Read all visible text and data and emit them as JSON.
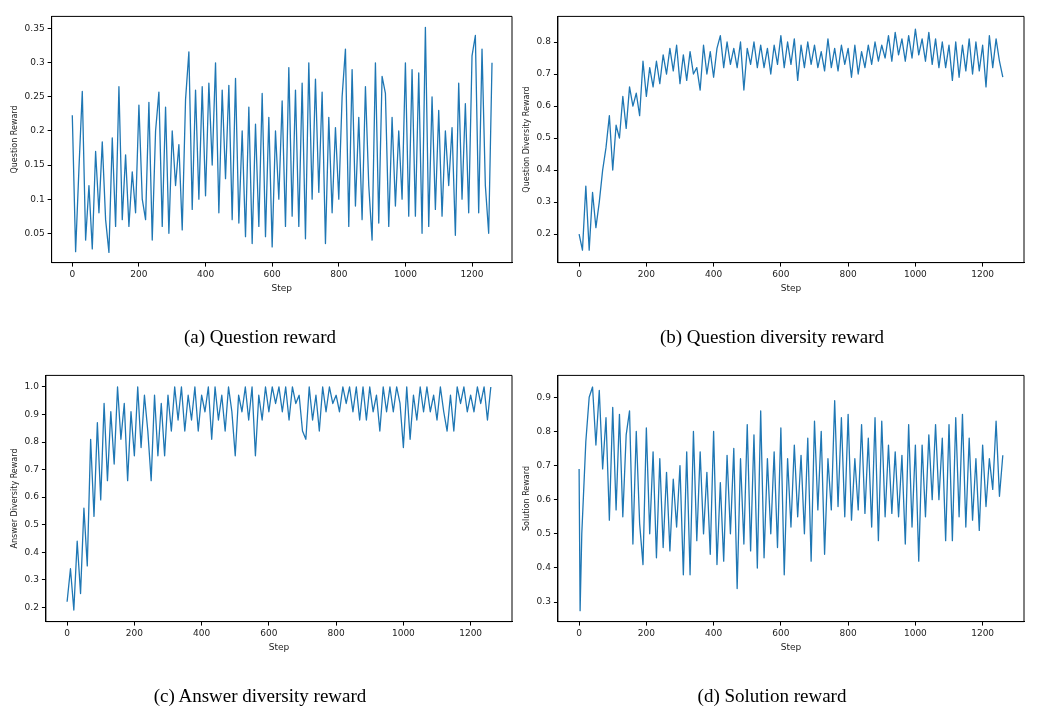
{
  "chart_data": [
    {
      "type": "line",
      "title": "(a) Question reward",
      "xlabel": "Step",
      "ylabel": "Question Reward",
      "xlim": [
        -62,
        1320
      ],
      "xticks": [
        0,
        200,
        400,
        600,
        800,
        1000,
        1200
      ],
      "ylim": [
        0.007,
        0.368
      ],
      "yticks": [
        0.05,
        0.1,
        0.15,
        0.2,
        0.25,
        0.3,
        0.35
      ],
      "grid": false,
      "legend": false,
      "x": [
        0,
        10,
        20,
        30,
        40,
        50,
        60,
        70,
        80,
        90,
        100,
        110,
        120,
        130,
        140,
        150,
        160,
        170,
        180,
        190,
        200,
        210,
        220,
        230,
        240,
        250,
        260,
        270,
        280,
        290,
        300,
        310,
        320,
        330,
        340,
        350,
        360,
        370,
        380,
        390,
        400,
        410,
        420,
        430,
        440,
        450,
        460,
        470,
        480,
        490,
        500,
        510,
        520,
        530,
        540,
        550,
        560,
        570,
        580,
        590,
        600,
        610,
        620,
        630,
        640,
        650,
        660,
        670,
        680,
        690,
        700,
        710,
        720,
        730,
        740,
        750,
        760,
        770,
        780,
        790,
        800,
        810,
        820,
        830,
        840,
        850,
        860,
        870,
        880,
        890,
        900,
        910,
        920,
        930,
        940,
        950,
        960,
        970,
        980,
        990,
        1000,
        1010,
        1020,
        1030,
        1040,
        1050,
        1060,
        1070,
        1080,
        1090,
        1100,
        1110,
        1120,
        1130,
        1140,
        1150,
        1160,
        1170,
        1180,
        1190,
        1200,
        1210,
        1220,
        1230,
        1240,
        1250,
        1260
      ],
      "series": [
        {
          "color": "#1f77b4",
          "values": [
            0.223,
            0.023,
            0.145,
            0.258,
            0.04,
            0.12,
            0.027,
            0.17,
            0.08,
            0.184,
            0.07,
            0.022,
            0.19,
            0.06,
            0.265,
            0.07,
            0.165,
            0.06,
            0.14,
            0.08,
            0.238,
            0.1,
            0.07,
            0.242,
            0.04,
            0.2,
            0.257,
            0.06,
            0.235,
            0.05,
            0.2,
            0.12,
            0.18,
            0.055,
            0.246,
            0.316,
            0.085,
            0.26,
            0.1,
            0.265,
            0.105,
            0.27,
            0.15,
            0.3,
            0.08,
            0.26,
            0.13,
            0.267,
            0.07,
            0.277,
            0.065,
            0.2,
            0.045,
            0.235,
            0.035,
            0.21,
            0.06,
            0.255,
            0.045,
            0.22,
            0.03,
            0.2,
            0.1,
            0.244,
            0.06,
            0.293,
            0.075,
            0.26,
            0.06,
            0.27,
            0.042,
            0.3,
            0.1,
            0.276,
            0.11,
            0.257,
            0.035,
            0.22,
            0.08,
            0.205,
            0.1,
            0.25,
            0.32,
            0.06,
            0.29,
            0.09,
            0.22,
            0.07,
            0.265,
            0.12,
            0.04,
            0.3,
            0.065,
            0.28,
            0.255,
            0.06,
            0.22,
            0.09,
            0.2,
            0.1,
            0.3,
            0.075,
            0.29,
            0.075,
            0.285,
            0.05,
            0.352,
            0.06,
            0.25,
            0.085,
            0.23,
            0.075,
            0.2,
            0.12,
            0.205,
            0.047,
            0.27,
            0.1,
            0.24,
            0.08,
            0.31,
            0.34,
            0.08,
            0.32,
            0.12,
            0.05,
            0.3
          ]
        }
      ]
    },
    {
      "type": "line",
      "title": "(b) Question diversity reward",
      "xlabel": "Step",
      "ylabel": "Question Diversity Reward",
      "xlim": [
        -63,
        1323
      ],
      "xticks": [
        0,
        200,
        400,
        600,
        800,
        1000,
        1200
      ],
      "ylim": [
        0.111,
        0.88
      ],
      "yticks": [
        0.2,
        0.3,
        0.4,
        0.5,
        0.6,
        0.7,
        0.8
      ],
      "grid": false,
      "legend": false,
      "x": [
        0,
        10,
        20,
        30,
        40,
        50,
        60,
        70,
        80,
        90,
        100,
        110,
        120,
        130,
        140,
        150,
        160,
        170,
        180,
        190,
        200,
        210,
        220,
        230,
        240,
        250,
        260,
        270,
        280,
        290,
        300,
        310,
        320,
        330,
        340,
        350,
        360,
        370,
        380,
        390,
        400,
        410,
        420,
        430,
        440,
        450,
        460,
        470,
        480,
        490,
        500,
        510,
        520,
        530,
        540,
        550,
        560,
        570,
        580,
        590,
        600,
        610,
        620,
        630,
        640,
        650,
        660,
        670,
        680,
        690,
        700,
        710,
        720,
        730,
        740,
        750,
        760,
        770,
        780,
        790,
        800,
        810,
        820,
        830,
        840,
        850,
        860,
        870,
        880,
        890,
        900,
        910,
        920,
        930,
        940,
        950,
        960,
        970,
        980,
        990,
        1000,
        1010,
        1020,
        1030,
        1040,
        1050,
        1060,
        1070,
        1080,
        1090,
        1100,
        1110,
        1120,
        1130,
        1140,
        1150,
        1160,
        1170,
        1180,
        1190,
        1200,
        1210,
        1220,
        1230,
        1240,
        1250,
        1260
      ],
      "series": [
        {
          "color": "#1f77b4",
          "values": [
            0.2,
            0.15,
            0.35,
            0.15,
            0.33,
            0.22,
            0.3,
            0.4,
            0.47,
            0.57,
            0.4,
            0.54,
            0.5,
            0.63,
            0.53,
            0.66,
            0.6,
            0.64,
            0.57,
            0.74,
            0.63,
            0.72,
            0.66,
            0.74,
            0.67,
            0.76,
            0.7,
            0.78,
            0.71,
            0.79,
            0.67,
            0.76,
            0.68,
            0.77,
            0.7,
            0.72,
            0.65,
            0.79,
            0.7,
            0.77,
            0.69,
            0.78,
            0.82,
            0.72,
            0.8,
            0.73,
            0.78,
            0.72,
            0.8,
            0.65,
            0.78,
            0.73,
            0.8,
            0.72,
            0.79,
            0.72,
            0.78,
            0.7,
            0.79,
            0.73,
            0.82,
            0.72,
            0.8,
            0.73,
            0.81,
            0.68,
            0.79,
            0.72,
            0.8,
            0.73,
            0.79,
            0.72,
            0.77,
            0.71,
            0.81,
            0.72,
            0.78,
            0.71,
            0.79,
            0.73,
            0.78,
            0.69,
            0.79,
            0.7,
            0.77,
            0.72,
            0.79,
            0.73,
            0.8,
            0.74,
            0.79,
            0.75,
            0.82,
            0.74,
            0.83,
            0.76,
            0.81,
            0.74,
            0.82,
            0.75,
            0.84,
            0.76,
            0.81,
            0.74,
            0.83,
            0.73,
            0.81,
            0.72,
            0.8,
            0.72,
            0.79,
            0.68,
            0.8,
            0.69,
            0.79,
            0.71,
            0.81,
            0.7,
            0.8,
            0.71,
            0.79,
            0.66,
            0.82,
            0.72,
            0.81,
            0.74,
            0.69
          ]
        }
      ]
    },
    {
      "type": "line",
      "title": "(c) Answer diversity reward",
      "xlabel": "Step",
      "ylabel": "Answer Diversity Reward",
      "xlim": [
        -63,
        1323
      ],
      "xticks": [
        0,
        200,
        400,
        600,
        800,
        1000,
        1200
      ],
      "ylim": [
        0.148,
        1.042
      ],
      "yticks": [
        {
          "value": 0.2,
          "label": "0.2"
        },
        {
          "value": 0.3,
          "label": "0.3"
        },
        {
          "value": 0.4,
          "label": "0.4"
        },
        {
          "value": 0.5,
          "label": "0.5"
        },
        {
          "value": 0.6,
          "label": "0.6"
        },
        {
          "value": 0.7,
          "label": "0.7"
        },
        {
          "value": 0.8,
          "label": "0.8"
        },
        {
          "value": 0.9,
          "label": "0.9"
        },
        {
          "value": 1,
          "label": "1.0"
        }
      ],
      "grid": false,
      "legend": false,
      "x": [
        0,
        10,
        20,
        30,
        40,
        50,
        60,
        70,
        80,
        90,
        100,
        110,
        120,
        130,
        140,
        150,
        160,
        170,
        180,
        190,
        200,
        210,
        220,
        230,
        240,
        250,
        260,
        270,
        280,
        290,
        300,
        310,
        320,
        330,
        340,
        350,
        360,
        370,
        380,
        390,
        400,
        410,
        420,
        430,
        440,
        450,
        460,
        470,
        480,
        490,
        500,
        510,
        520,
        530,
        540,
        550,
        560,
        570,
        580,
        590,
        600,
        610,
        620,
        630,
        640,
        650,
        660,
        670,
        680,
        690,
        700,
        710,
        720,
        730,
        740,
        750,
        760,
        770,
        780,
        790,
        800,
        810,
        820,
        830,
        840,
        850,
        860,
        870,
        880,
        890,
        900,
        910,
        920,
        930,
        940,
        950,
        960,
        970,
        980,
        990,
        1000,
        1010,
        1020,
        1030,
        1040,
        1050,
        1060,
        1070,
        1080,
        1090,
        1100,
        1110,
        1120,
        1130,
        1140,
        1150,
        1160,
        1170,
        1180,
        1190,
        1200,
        1210,
        1220,
        1230,
        1240,
        1250,
        1260
      ],
      "series": [
        {
          "color": "#1f77b4",
          "values": [
            0.22,
            0.34,
            0.19,
            0.44,
            0.25,
            0.56,
            0.35,
            0.81,
            0.53,
            0.87,
            0.59,
            0.94,
            0.66,
            0.91,
            0.72,
            1.0,
            0.81,
            0.94,
            0.66,
            0.91,
            0.75,
            1.0,
            0.78,
            0.97,
            0.84,
            0.66,
            0.97,
            0.75,
            0.94,
            0.75,
            0.97,
            0.84,
            1.0,
            0.88,
            1.0,
            0.84,
            0.97,
            0.88,
            1.0,
            0.84,
            0.97,
            0.91,
            1.0,
            0.81,
            1.0,
            0.88,
            0.97,
            0.84,
            1.0,
            0.91,
            0.75,
            0.97,
            0.91,
            1.0,
            0.88,
            1.0,
            0.75,
            0.97,
            0.88,
            1.0,
            0.91,
            1.0,
            0.94,
            1.0,
            0.91,
            1.0,
            0.88,
            1.0,
            0.94,
            0.97,
            0.84,
            0.81,
            1.0,
            0.88,
            0.97,
            0.84,
            1.0,
            0.91,
            1.0,
            0.94,
            0.97,
            0.91,
            1.0,
            0.94,
            1.0,
            0.91,
            1.0,
            0.88,
            1.0,
            0.88,
            1.0,
            0.91,
            0.97,
            0.84,
            1.0,
            0.91,
            1.0,
            0.91,
            1.0,
            0.94,
            0.78,
            1.0,
            0.81,
            0.97,
            0.88,
            1.0,
            0.91,
            1.0,
            0.91,
            0.97,
            0.88,
            1.0,
            0.91,
            0.84,
            0.97,
            0.84,
            1.0,
            0.94,
            1.0,
            0.91,
            0.97,
            0.91,
            1.0,
            0.94,
            1.0,
            0.88,
            1.0
          ]
        }
      ]
    },
    {
      "type": "line",
      "title": "(d) Solution reward",
      "xlabel": "Step",
      "ylabel": "Solution Reward",
      "xlim": [
        -63,
        1323
      ],
      "xticks": [
        0,
        200,
        400,
        600,
        800,
        1000,
        1200
      ],
      "ylim": [
        0.243,
        0.964
      ],
      "yticks": [
        0.3,
        0.4,
        0.5,
        0.6,
        0.7,
        0.8,
        0.9
      ],
      "grid": false,
      "legend": false,
      "x": [
        0,
        3,
        8,
        20,
        30,
        40,
        50,
        60,
        70,
        80,
        90,
        100,
        110,
        120,
        130,
        140,
        150,
        160,
        170,
        180,
        190,
        200,
        210,
        220,
        230,
        240,
        250,
        260,
        270,
        280,
        290,
        300,
        310,
        320,
        330,
        340,
        350,
        360,
        370,
        380,
        390,
        400,
        410,
        420,
        430,
        440,
        450,
        460,
        470,
        480,
        490,
        500,
        510,
        520,
        530,
        540,
        550,
        560,
        570,
        580,
        590,
        600,
        610,
        620,
        630,
        640,
        650,
        660,
        670,
        680,
        690,
        700,
        710,
        720,
        730,
        740,
        750,
        760,
        770,
        780,
        790,
        800,
        810,
        820,
        830,
        840,
        850,
        860,
        870,
        880,
        890,
        900,
        910,
        920,
        930,
        940,
        950,
        960,
        970,
        980,
        990,
        1000,
        1010,
        1020,
        1030,
        1040,
        1050,
        1060,
        1070,
        1080,
        1090,
        1100,
        1110,
        1120,
        1130,
        1140,
        1150,
        1160,
        1170,
        1180,
        1190,
        1200,
        1210,
        1220,
        1230,
        1240,
        1250,
        1260
      ],
      "series": [
        {
          "color": "#1f77b4",
          "values": [
            0.69,
            0.275,
            0.5,
            0.77,
            0.9,
            0.93,
            0.76,
            0.92,
            0.69,
            0.84,
            0.54,
            0.87,
            0.57,
            0.85,
            0.55,
            0.79,
            0.86,
            0.47,
            0.8,
            0.53,
            0.41,
            0.81,
            0.5,
            0.74,
            0.43,
            0.72,
            0.46,
            0.68,
            0.45,
            0.66,
            0.52,
            0.7,
            0.38,
            0.74,
            0.38,
            0.8,
            0.48,
            0.74,
            0.5,
            0.68,
            0.44,
            0.8,
            0.41,
            0.65,
            0.42,
            0.73,
            0.5,
            0.75,
            0.34,
            0.72,
            0.47,
            0.82,
            0.45,
            0.79,
            0.4,
            0.86,
            0.43,
            0.72,
            0.5,
            0.74,
            0.46,
            0.81,
            0.38,
            0.72,
            0.52,
            0.76,
            0.55,
            0.73,
            0.5,
            0.78,
            0.42,
            0.83,
            0.57,
            0.8,
            0.44,
            0.72,
            0.57,
            0.89,
            0.58,
            0.84,
            0.55,
            0.85,
            0.54,
            0.72,
            0.57,
            0.82,
            0.56,
            0.78,
            0.52,
            0.84,
            0.48,
            0.83,
            0.55,
            0.76,
            0.56,
            0.74,
            0.55,
            0.73,
            0.47,
            0.82,
            0.52,
            0.76,
            0.42,
            0.76,
            0.55,
            0.79,
            0.6,
            0.82,
            0.6,
            0.78,
            0.48,
            0.82,
            0.48,
            0.84,
            0.55,
            0.85,
            0.52,
            0.78,
            0.54,
            0.72,
            0.51,
            0.76,
            0.58,
            0.72,
            0.63,
            0.83,
            0.61,
            0.73
          ]
        }
      ]
    }
  ]
}
